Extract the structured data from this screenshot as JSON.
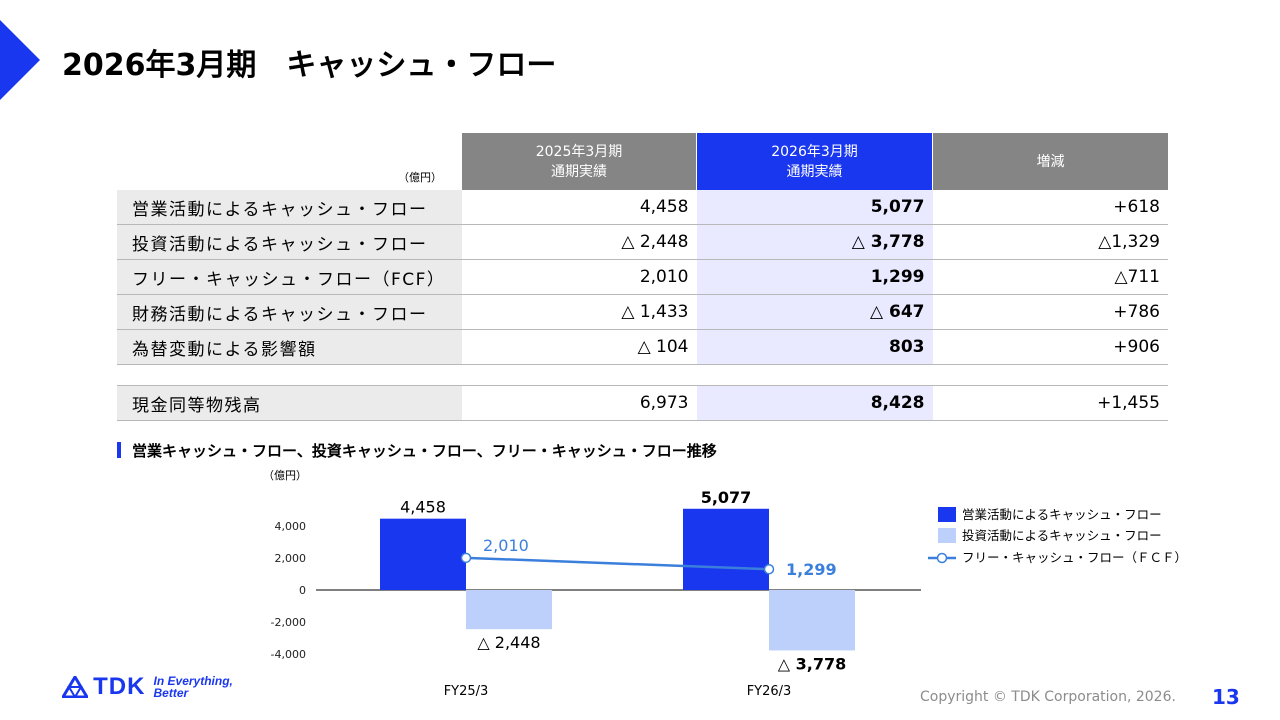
{
  "title": "2026年3月期　キャッシュ・フロー",
  "table": {
    "unit": "（億円）",
    "headers": {
      "prev": [
        "2025年3月期",
        "通期実績"
      ],
      "cur": [
        "2026年3月期",
        "通期実績"
      ],
      "diff": "増減"
    },
    "rows": [
      {
        "label": "営業活動によるキャッシュ・フロー",
        "prev": "4,458",
        "cur": "5,077",
        "diff": "+618"
      },
      {
        "label": "投資活動によるキャッシュ・フロー",
        "prev": "△ 2,448",
        "cur": "△ 3,778",
        "diff": "△1,329"
      },
      {
        "label": "フリー・キャッシュ・フロー（FCF）",
        "prev": "2,010",
        "cur": "1,299",
        "diff": "△711"
      },
      {
        "label": "財務活動によるキャッシュ・フロー",
        "prev": "△ 1,433",
        "cur": "△ 647",
        "diff": "+786"
      },
      {
        "label": "為替変動による影響額",
        "prev": "△ 104",
        "cur": "803",
        "diff": "+906"
      }
    ],
    "total": {
      "label": "現金同等物残高",
      "prev": "6,973",
      "cur": "8,428",
      "diff": "+1,455"
    }
  },
  "section_title": "営業キャッシュ・フロー、投資キャッシュ・フロー、フリー・キャッシュ・フロー推移",
  "chart_unit": "（億円）",
  "chart_data": {
    "type": "bar",
    "categories": [
      "FY25/3",
      "FY26/3"
    ],
    "series": [
      {
        "name": "営業活動によるキャッシュ・フロー",
        "kind": "bar",
        "values": [
          4458,
          5077
        ],
        "labels": [
          "4,458",
          "5,077"
        ],
        "color": "#1a37f0"
      },
      {
        "name": "投資活動によるキャッシュ・フロー",
        "kind": "bar",
        "values": [
          -2448,
          -3778
        ],
        "labels": [
          "△ 2,448",
          "△ 3,778"
        ],
        "color": "#bdd0fb"
      },
      {
        "name": "フリー・キャッシュ・フロー（ＦＣＦ）",
        "kind": "line",
        "values": [
          2010,
          1299
        ],
        "labels": [
          "2,010",
          "1,299"
        ],
        "color": "#3b7fdc"
      }
    ],
    "yticks": [
      4000,
      2000,
      0,
      -2000,
      -4000
    ],
    "ytick_labels": [
      "4,000",
      "2,000",
      "0",
      "-2,000",
      "-4,000"
    ],
    "ylim": [
      -4000,
      5000
    ],
    "legend": "right"
  },
  "footer": {
    "logo_text": "TDK",
    "tagline": [
      "In Everything,",
      "Better"
    ],
    "copyright": "Copyright  © TDK Corporation, 2026.",
    "page": "13"
  },
  "colors": {
    "accent": "#1a37f0",
    "gray_header": "#858585",
    "light_blue": "#bdd0fb",
    "line": "#3b7fdc"
  }
}
